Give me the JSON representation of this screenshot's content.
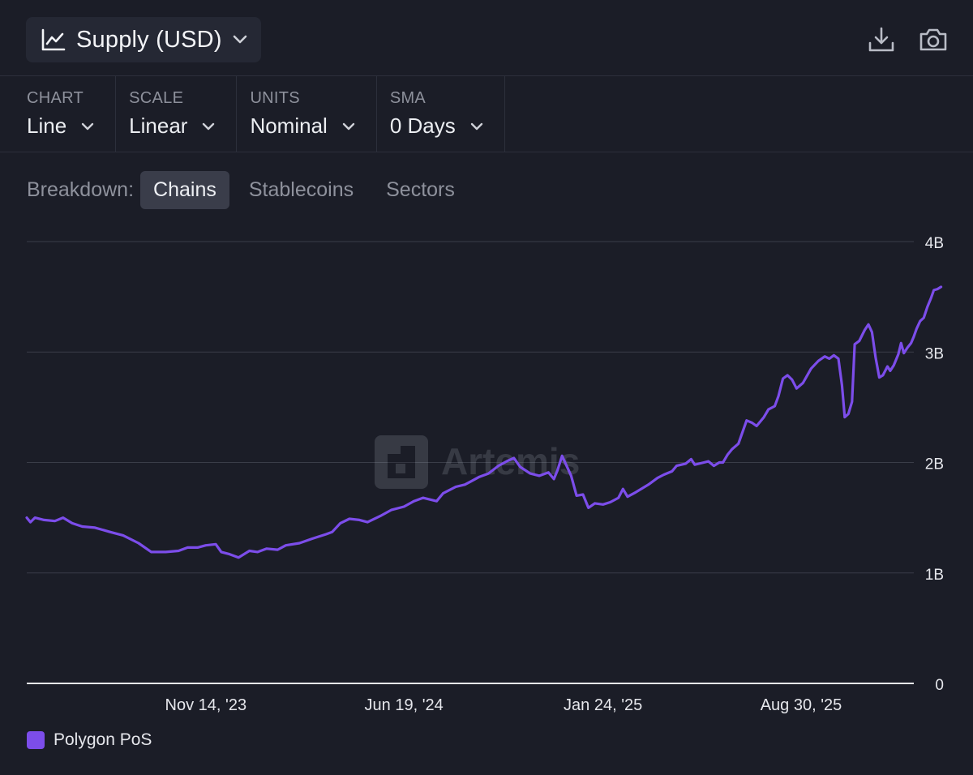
{
  "header": {
    "title": "Supply (USD)",
    "title_icon": "line-chart-icon",
    "download_icon": "download-icon",
    "screenshot_icon": "camera-icon"
  },
  "controls": [
    {
      "label": "CHART",
      "value": "Line"
    },
    {
      "label": "SCALE",
      "value": "Linear"
    },
    {
      "label": "UNITS",
      "value": "Nominal"
    },
    {
      "label": "SMA",
      "value": "0 Days"
    }
  ],
  "breakdown": {
    "label": "Breakdown:",
    "options": [
      "Chains",
      "Stablecoins",
      "Sectors"
    ],
    "active": "Chains"
  },
  "watermark": "Artemis",
  "colors": {
    "background": "#1b1d27",
    "series": "#7c4dea",
    "grid": "#3a3d48"
  },
  "chart_data": {
    "type": "line",
    "x_type": "date",
    "xlim": [
      "2023-05-01",
      "2026-01-01"
    ],
    "x_ticks": [
      {
        "date": "2023-11-14",
        "label": "Nov 14, '23"
      },
      {
        "date": "2024-06-19",
        "label": "Jun 19, '24"
      },
      {
        "date": "2025-01-24",
        "label": "Jan 24, '25"
      },
      {
        "date": "2025-08-30",
        "label": "Aug 30, '25"
      }
    ],
    "ylim": [
      0,
      4000000000
    ],
    "y_ticks": [
      {
        "value": 0,
        "label": "0"
      },
      {
        "value": 1000000000,
        "label": "1B"
      },
      {
        "value": 2000000000,
        "label": "2B"
      },
      {
        "value": 3000000000,
        "label": "3B"
      },
      {
        "value": 4000000000,
        "label": "4B"
      }
    ],
    "grid": true,
    "y_axis_position": "right",
    "legend_position": "bottom-left",
    "series": [
      {
        "name": "Polygon PoS",
        "color": "#7c4dea",
        "points": [
          [
            "2023-05-01",
            1.5
          ],
          [
            "2023-05-05",
            1.46
          ],
          [
            "2023-05-10",
            1.5
          ],
          [
            "2023-05-20",
            1.48
          ],
          [
            "2023-06-01",
            1.47
          ],
          [
            "2023-06-10",
            1.5
          ],
          [
            "2023-06-20",
            1.45
          ],
          [
            "2023-07-01",
            1.42
          ],
          [
            "2023-07-15",
            1.41
          ],
          [
            "2023-08-01",
            1.37
          ],
          [
            "2023-08-15",
            1.34
          ],
          [
            "2023-09-01",
            1.27
          ],
          [
            "2023-09-15",
            1.19
          ],
          [
            "2023-10-01",
            1.19
          ],
          [
            "2023-10-15",
            1.2
          ],
          [
            "2023-10-25",
            1.23
          ],
          [
            "2023-11-05",
            1.23
          ],
          [
            "2023-11-14",
            1.25
          ],
          [
            "2023-11-25",
            1.26
          ],
          [
            "2023-12-01",
            1.19
          ],
          [
            "2023-12-10",
            1.17
          ],
          [
            "2023-12-20",
            1.14
          ],
          [
            "2024-01-01",
            1.2
          ],
          [
            "2024-01-10",
            1.19
          ],
          [
            "2024-01-20",
            1.22
          ],
          [
            "2024-02-01",
            1.21
          ],
          [
            "2024-02-10",
            1.25
          ],
          [
            "2024-02-25",
            1.27
          ],
          [
            "2024-03-10",
            1.31
          ],
          [
            "2024-03-25",
            1.35
          ],
          [
            "2024-04-01",
            1.37
          ],
          [
            "2024-04-10",
            1.45
          ],
          [
            "2024-04-20",
            1.49
          ],
          [
            "2024-05-01",
            1.48
          ],
          [
            "2024-05-10",
            1.46
          ],
          [
            "2024-05-25",
            1.52
          ],
          [
            "2024-06-05",
            1.57
          ],
          [
            "2024-06-19",
            1.6
          ],
          [
            "2024-06-30",
            1.65
          ],
          [
            "2024-07-10",
            1.68
          ],
          [
            "2024-07-25",
            1.65
          ],
          [
            "2024-08-01",
            1.72
          ],
          [
            "2024-08-15",
            1.78
          ],
          [
            "2024-08-25",
            1.8
          ],
          [
            "2024-09-01",
            1.83
          ],
          [
            "2024-09-10",
            1.87
          ],
          [
            "2024-09-20",
            1.9
          ],
          [
            "2024-10-01",
            1.97
          ],
          [
            "2024-10-10",
            2.01
          ],
          [
            "2024-10-18",
            2.04
          ],
          [
            "2024-10-25",
            1.96
          ],
          [
            "2024-11-05",
            1.9
          ],
          [
            "2024-11-15",
            1.88
          ],
          [
            "2024-11-25",
            1.91
          ],
          [
            "2024-12-01",
            1.85
          ],
          [
            "2024-12-05",
            1.93
          ],
          [
            "2024-12-10",
            2.06
          ],
          [
            "2024-12-20",
            1.88
          ],
          [
            "2024-12-26",
            1.7
          ],
          [
            "2025-01-02",
            1.71
          ],
          [
            "2025-01-08",
            1.59
          ],
          [
            "2025-01-15",
            1.63
          ],
          [
            "2025-01-24",
            1.62
          ],
          [
            "2025-02-01",
            1.64
          ],
          [
            "2025-02-10",
            1.68
          ],
          [
            "2025-02-15",
            1.76
          ],
          [
            "2025-02-20",
            1.69
          ],
          [
            "2025-03-01",
            1.73
          ],
          [
            "2025-03-15",
            1.8
          ],
          [
            "2025-03-25",
            1.86
          ],
          [
            "2025-04-01",
            1.89
          ],
          [
            "2025-04-10",
            1.92
          ],
          [
            "2025-04-15",
            1.97
          ],
          [
            "2025-04-25",
            1.99
          ],
          [
            "2025-05-01",
            2.03
          ],
          [
            "2025-05-05",
            1.98
          ],
          [
            "2025-05-15",
            2.0
          ],
          [
            "2025-05-20",
            2.01
          ],
          [
            "2025-05-26",
            1.97
          ],
          [
            "2025-06-01",
            2.0
          ],
          [
            "2025-06-05",
            2.0
          ],
          [
            "2025-06-10",
            2.07
          ],
          [
            "2025-06-15",
            2.12
          ],
          [
            "2025-06-22",
            2.17
          ],
          [
            "2025-07-01",
            2.38
          ],
          [
            "2025-07-07",
            2.36
          ],
          [
            "2025-07-12",
            2.33
          ],
          [
            "2025-07-20",
            2.41
          ],
          [
            "2025-07-25",
            2.48
          ],
          [
            "2025-08-01",
            2.51
          ],
          [
            "2025-08-05",
            2.6
          ],
          [
            "2025-08-10",
            2.76
          ],
          [
            "2025-08-15",
            2.79
          ],
          [
            "2025-08-20",
            2.75
          ],
          [
            "2025-08-25",
            2.67
          ],
          [
            "2025-09-01",
            2.72
          ],
          [
            "2025-09-10",
            2.85
          ],
          [
            "2025-09-18",
            2.92
          ],
          [
            "2025-09-25",
            2.96
          ],
          [
            "2025-09-30",
            2.94
          ],
          [
            "2025-10-05",
            2.97
          ],
          [
            "2025-10-10",
            2.94
          ],
          [
            "2025-10-14",
            2.7
          ],
          [
            "2025-10-17",
            2.41
          ],
          [
            "2025-10-21",
            2.44
          ],
          [
            "2025-10-25",
            2.55
          ],
          [
            "2025-10-28",
            3.07
          ],
          [
            "2025-11-02",
            3.1
          ],
          [
            "2025-11-08",
            3.2
          ],
          [
            "2025-11-12",
            3.25
          ],
          [
            "2025-11-16",
            3.18
          ],
          [
            "2025-11-20",
            2.95
          ],
          [
            "2025-11-24",
            2.77
          ],
          [
            "2025-11-28",
            2.79
          ],
          [
            "2025-12-03",
            2.87
          ],
          [
            "2025-12-06",
            2.83
          ],
          [
            "2025-12-10",
            2.88
          ],
          [
            "2025-12-15",
            2.98
          ],
          [
            "2025-12-18",
            3.08
          ],
          [
            "2025-12-21",
            2.99
          ],
          [
            "2025-12-25",
            3.04
          ],
          [
            "2025-12-29",
            3.08
          ],
          [
            "2026-01-01",
            3.14
          ],
          [
            "2026-01-04",
            3.21
          ],
          [
            "2026-01-08",
            3.28
          ],
          [
            "2026-01-12",
            3.31
          ],
          [
            "2026-01-16",
            3.41
          ],
          [
            "2026-01-20",
            3.49
          ],
          [
            "2026-01-23",
            3.56
          ],
          [
            "2026-01-27",
            3.57
          ],
          [
            "2026-01-31",
            3.59
          ]
        ],
        "y_scale": 1000000000
      }
    ]
  }
}
